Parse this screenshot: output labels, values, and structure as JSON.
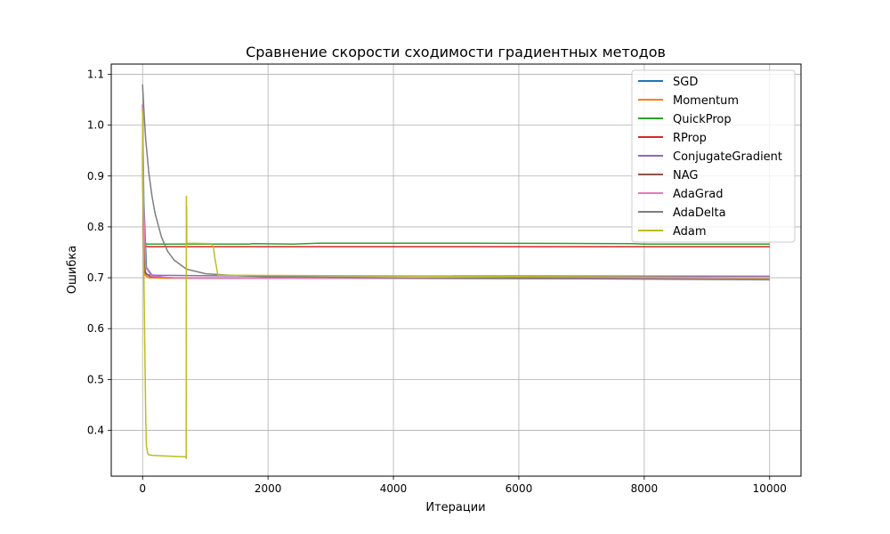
{
  "chart_data": {
    "type": "line",
    "title": "Сравнение скорости сходимости градиентных методов",
    "xlabel": "Итерации",
    "ylabel": "Ошибка",
    "xlim": [
      -500,
      10500
    ],
    "ylim": [
      0.31,
      1.12
    ],
    "xticks": [
      0,
      2000,
      4000,
      6000,
      8000,
      10000
    ],
    "yticks": [
      0.4,
      0.5,
      0.6,
      0.7,
      0.8,
      0.9,
      1.0,
      1.1
    ],
    "xtick_labels": [
      "0",
      "2000",
      "4000",
      "6000",
      "8000",
      "10000"
    ],
    "ytick_labels": [
      "0.4",
      "0.5",
      "0.6",
      "0.7",
      "0.8",
      "0.9",
      "1.0",
      "1.1"
    ],
    "grid": true,
    "legend_position": "top-right",
    "series": [
      {
        "name": "SGD",
        "color": "#1f77b4",
        "x": [
          0,
          20,
          60,
          150,
          400,
          1000,
          10000
        ],
        "y": [
          1.04,
          0.85,
          0.72,
          0.705,
          0.7,
          0.699,
          0.698
        ]
      },
      {
        "name": "Momentum",
        "color": "#ff7f0e",
        "x": [
          0,
          10,
          40,
          100,
          400,
          10000
        ],
        "y": [
          1.04,
          0.78,
          0.705,
          0.7,
          0.699,
          0.698
        ]
      },
      {
        "name": "QuickProp",
        "color": "#2ca02c",
        "x": [
          0,
          10,
          30,
          60,
          1000,
          1700,
          1750,
          2400,
          2800,
          4800,
          5200,
          7800,
          8000,
          10000
        ],
        "y": [
          1.03,
          0.85,
          0.77,
          0.766,
          0.766,
          0.766,
          0.767,
          0.766,
          0.768,
          0.768,
          0.768,
          0.767,
          0.766,
          0.766
        ]
      },
      {
        "name": "RProp",
        "color": "#d62728",
        "x": [
          0,
          10,
          30,
          100,
          10000
        ],
        "y": [
          1.04,
          0.8,
          0.762,
          0.761,
          0.761
        ]
      },
      {
        "name": "ConjugateGradient",
        "color": "#9467bd",
        "x": [
          0,
          10,
          30,
          60,
          200,
          1000,
          10000
        ],
        "y": [
          1.04,
          0.8,
          0.72,
          0.706,
          0.705,
          0.704,
          0.703
        ]
      },
      {
        "name": "NAG",
        "color": "#8c564b",
        "x": [
          0,
          10,
          40,
          120,
          500,
          10000
        ],
        "y": [
          1.04,
          0.8,
          0.71,
          0.702,
          0.7,
          0.699
        ]
      },
      {
        "name": "AdaGrad",
        "color": "#e377c2",
        "x": [
          0,
          15,
          50,
          150,
          500,
          2000,
          10000
        ],
        "y": [
          1.04,
          0.85,
          0.72,
          0.703,
          0.7,
          0.699,
          0.698
        ]
      },
      {
        "name": "AdaDelta",
        "color": "#7f7f7f",
        "x": [
          0,
          25,
          50,
          100,
          150,
          200,
          300,
          400,
          500,
          700,
          1000,
          1500,
          2000,
          4000,
          10000
        ],
        "y": [
          1.08,
          1.02,
          0.97,
          0.905,
          0.86,
          0.826,
          0.78,
          0.752,
          0.735,
          0.717,
          0.708,
          0.704,
          0.702,
          0.7,
          0.696
        ]
      },
      {
        "name": "Adam",
        "color": "#bcbd22",
        "x": [
          0,
          10,
          20,
          30,
          40,
          50,
          60,
          80,
          100,
          150,
          300,
          500,
          690,
          695,
          698,
          700,
          702,
          705,
          1100,
          1130,
          1150,
          1200,
          10000
        ],
        "y": [
          1.03,
          0.85,
          0.71,
          0.62,
          0.52,
          0.42,
          0.37,
          0.355,
          0.352,
          0.351,
          0.35,
          0.349,
          0.348,
          0.345,
          0.86,
          0.76,
          0.84,
          0.768,
          0.767,
          0.76,
          0.74,
          0.705,
          0.7
        ]
      }
    ]
  }
}
